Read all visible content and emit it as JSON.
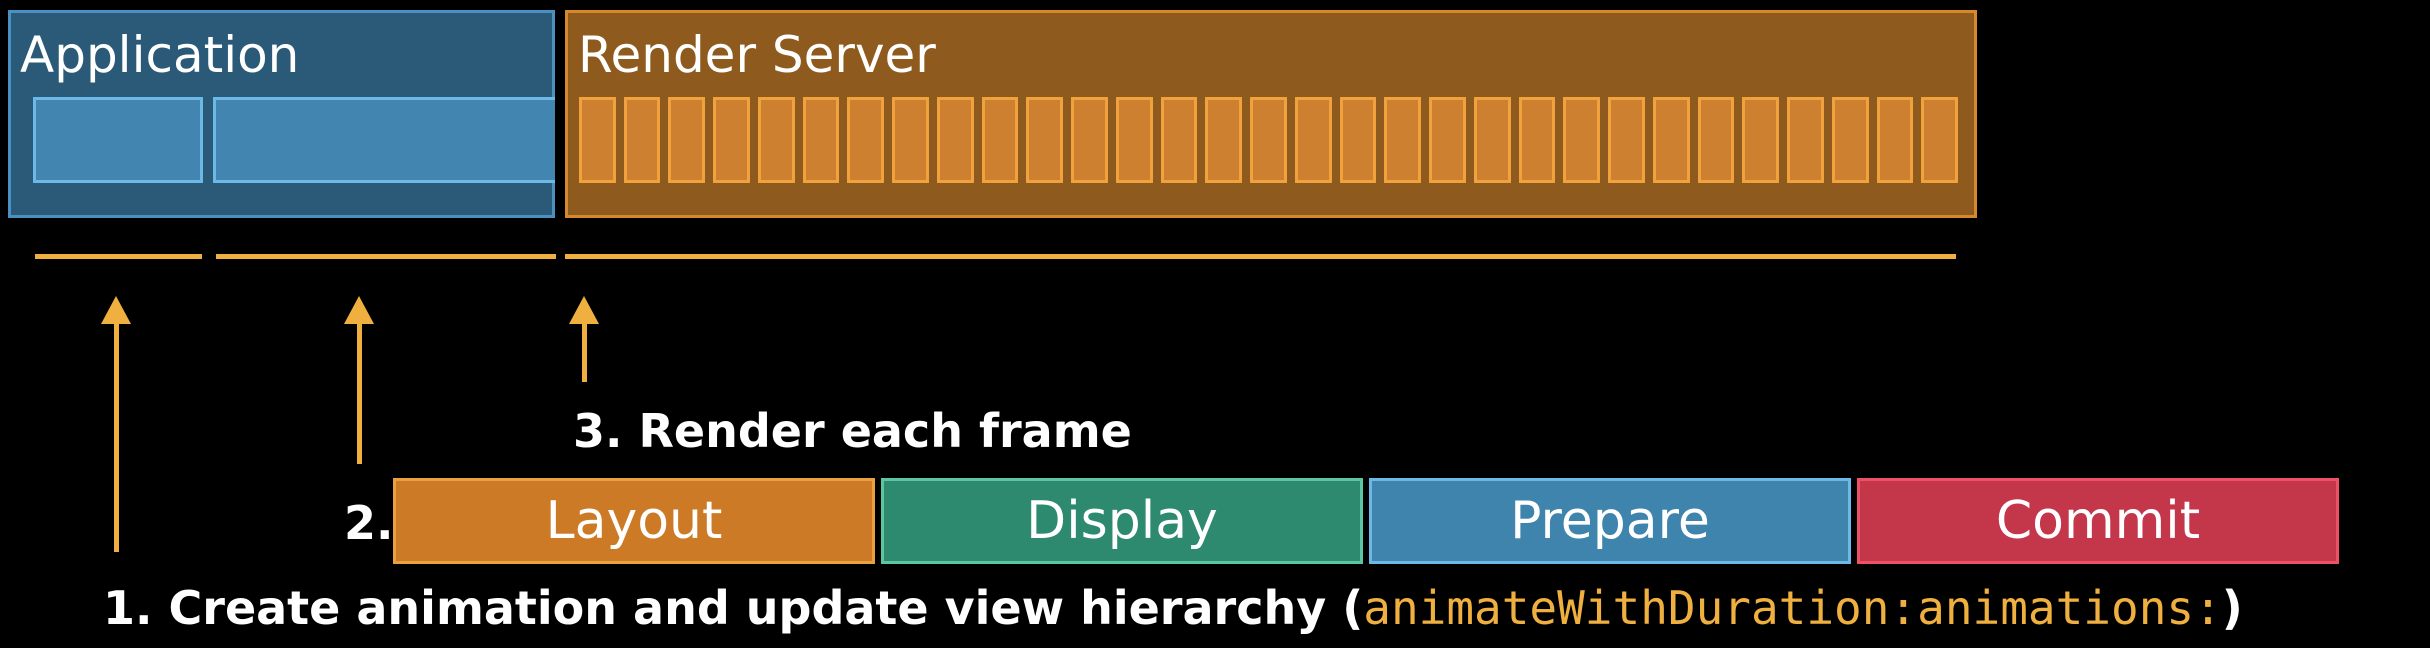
{
  "panels": {
    "application_title": "Application",
    "render_server_title": "Render Server"
  },
  "phases": {
    "layout": "Layout",
    "display": "Display",
    "prepare": "Prepare",
    "commit": "Commit"
  },
  "steps": {
    "step1_number": "1.",
    "step1_text": "Create animation and update view hierarchy (",
    "step1_code": "animateWithDuration:animations:",
    "step1_close": ")",
    "step2_number": "2.",
    "step3_text": "3. Render each frame"
  },
  "colors": {
    "application": "#2a5a78",
    "render_server": "#8f5a1e",
    "layout": "#cc7a25",
    "display": "#2e8a6e",
    "prepare": "#3f84ac",
    "commit": "#c4364a",
    "arrow": "#f0b040"
  },
  "render_frames_count": 31
}
